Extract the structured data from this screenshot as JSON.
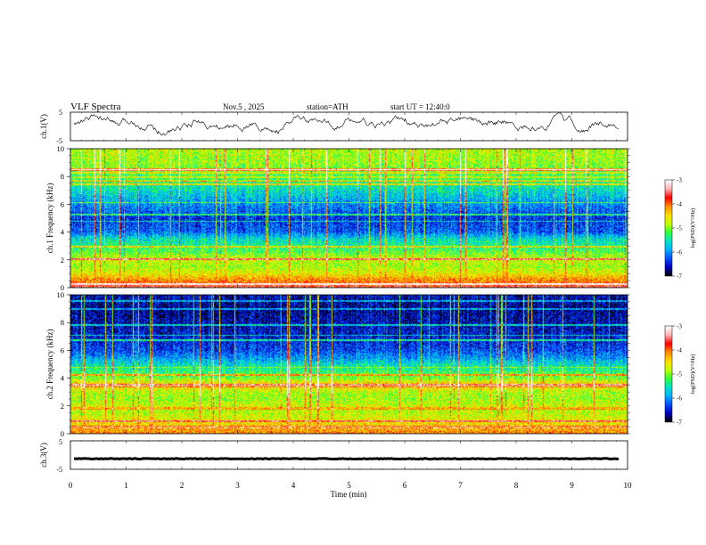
{
  "header": {
    "title": "VLF Spectra",
    "date": "Nov.5 , 2025",
    "station": "station=ATH",
    "start_time": "start UT = 12:40:0"
  },
  "colors": {
    "colormap": [
      "#000000",
      "#0000c8",
      "#0050ff",
      "#00b4ff",
      "#00e6c8",
      "#32ff32",
      "#c8ff00",
      "#ffdc00",
      "#ff8c00",
      "#ff0000",
      "#ffb4b4",
      "#ffffff"
    ],
    "trace": "#000000",
    "axis": "#000000"
  },
  "chart_data": [
    {
      "type": "line",
      "name": "ch1-waveform",
      "ylabel": "ch.1(V)",
      "ylim": [
        -5,
        5
      ],
      "yticks": [
        "5",
        "-5"
      ],
      "xlim": [
        0,
        10
      ],
      "description_values": "mean ~0.6 V, oscillating roughly between -5 and 5 V"
    },
    {
      "type": "heatmap",
      "name": "ch1-spectrogram",
      "ylabel": "ch.1 Frequency (kHz)",
      "ylim": [
        0,
        10
      ],
      "yticks": [
        "0",
        "2",
        "4",
        "6",
        "8",
        "10"
      ],
      "xlim": [
        0,
        10
      ],
      "colorbar": {
        "label": "log(PSD)(V²/Hz)",
        "range": [
          -7,
          -3
        ],
        "ticks": [
          "-3",
          "-4",
          "-5",
          "-6",
          "-7"
        ]
      },
      "band_profile_khz_to_logpsd": [
        [
          0,
          -3.6
        ],
        [
          0.3,
          -4.0
        ],
        [
          0.6,
          -4.2
        ],
        [
          1.0,
          -4.6
        ],
        [
          1.5,
          -4.9
        ],
        [
          2.0,
          -4.7
        ],
        [
          2.5,
          -5.1
        ],
        [
          3.0,
          -5.4
        ],
        [
          3.5,
          -5.6
        ],
        [
          4.0,
          -6.2
        ],
        [
          5.0,
          -6.4
        ],
        [
          6.0,
          -6.0
        ],
        [
          7.0,
          -5.6
        ],
        [
          8.0,
          -5.2
        ],
        [
          9.0,
          -4.9
        ],
        [
          10.0,
          -4.8
        ]
      ]
    },
    {
      "type": "heatmap",
      "name": "ch2-spectrogram",
      "ylabel": "ch.2 Frequency (kHz)",
      "ylim": [
        0,
        10
      ],
      "yticks": [
        "0",
        "2",
        "4",
        "6",
        "8",
        "10"
      ],
      "xlim": [
        0,
        10
      ],
      "colorbar": {
        "label": "log(PSD)(V²/Hz)",
        "range": [
          -7,
          -3
        ],
        "ticks": [
          "-3",
          "-4",
          "-5",
          "-6",
          "-7"
        ]
      },
      "band_profile_khz_to_logpsd": [
        [
          0,
          -4.1
        ],
        [
          0.5,
          -4.4
        ],
        [
          1.0,
          -4.6
        ],
        [
          1.5,
          -4.8
        ],
        [
          2.0,
          -4.7
        ],
        [
          2.5,
          -4.9
        ],
        [
          3.0,
          -4.8
        ],
        [
          3.5,
          -4.3
        ],
        [
          4.0,
          -5.0
        ],
        [
          4.5,
          -5.3
        ],
        [
          5.0,
          -5.6
        ],
        [
          5.5,
          -6.0
        ],
        [
          6.0,
          -6.3
        ],
        [
          7.0,
          -6.5
        ],
        [
          8.0,
          -6.6
        ],
        [
          9.0,
          -6.7
        ],
        [
          10.0,
          -6.6
        ]
      ]
    },
    {
      "type": "line",
      "name": "ch3-waveform",
      "ylabel": "ch.3(V)",
      "ylim": [
        -5,
        5
      ],
      "yticks": [
        "5",
        "0",
        "-5"
      ],
      "xlim": [
        0,
        10
      ],
      "description_values": "flat ~ -1.3 V"
    }
  ],
  "xaxis": {
    "label": "Time (min)",
    "ticks": [
      "0",
      "1",
      "2",
      "3",
      "4",
      "5",
      "6",
      "7",
      "8",
      "9",
      "10"
    ]
  }
}
